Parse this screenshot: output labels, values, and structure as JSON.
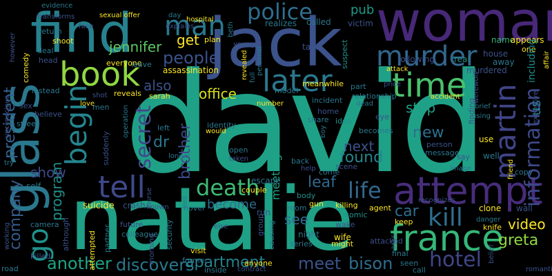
{
  "words": [
    {
      "text": "david",
      "color": "#1fa187"
    },
    {
      "text": "natalie",
      "color": "#1fa187"
    },
    {
      "text": "woman",
      "color": "#482878"
    },
    {
      "text": "jack",
      "color": "#3b528b"
    },
    {
      "text": "find",
      "color": "#26828e"
    },
    {
      "text": "glass",
      "color": "#2a788e"
    },
    {
      "text": "attempt",
      "color": "#472d7b"
    },
    {
      "text": "france",
      "color": "#35b779"
    },
    {
      "text": "book",
      "color": "#90d743"
    },
    {
      "text": "murder",
      "color": "#31688e"
    },
    {
      "text": "later",
      "color": "#2a788e"
    },
    {
      "text": "time",
      "color": "#4ac16d"
    },
    {
      "text": "martin",
      "color": "#414487"
    },
    {
      "text": "begin",
      "color": "#25858e"
    },
    {
      "text": "tell",
      "color": "#3e4989"
    },
    {
      "text": "police",
      "color": "#2e6e8e"
    },
    {
      "text": "man",
      "color": "#2a788e"
    },
    {
      "text": "kill",
      "color": "#2e6e8e"
    },
    {
      "text": "go",
      "color": "#21918c"
    },
    {
      "text": "death",
      "color": "#3dbc74"
    },
    {
      "text": "information",
      "color": "#3e4989"
    },
    {
      "text": "secret",
      "color": "#3f4889"
    },
    {
      "text": "life",
      "color": "#31688e"
    },
    {
      "text": "hotel",
      "color": "#404688"
    },
    {
      "text": "jennifer",
      "color": "#5ec962"
    },
    {
      "text": "people",
      "color": "#3b528b"
    },
    {
      "text": "greta",
      "color": "#90d743"
    },
    {
      "text": "video",
      "color": "#fde725"
    },
    {
      "text": "bison",
      "color": "#2e6e8e"
    },
    {
      "text": "discovers",
      "color": "#2a788e"
    },
    {
      "text": "apartment",
      "color": "#26828e"
    },
    {
      "text": "meet",
      "color": "#3b528b"
    },
    {
      "text": "another",
      "color": "#20a386"
    },
    {
      "text": "president",
      "color": "#355f8d"
    },
    {
      "text": "company",
      "color": "#365c8d"
    },
    {
      "text": "office",
      "color": "#d8e219"
    },
    {
      "text": "found",
      "color": "#25858e"
    },
    {
      "text": "next",
      "color": "#3b528b"
    },
    {
      "text": "program",
      "color": "#21918c"
    },
    {
      "text": "show",
      "color": "#3e4989"
    },
    {
      "text": "brother",
      "color": "#3e4989"
    },
    {
      "text": "leaf",
      "color": "#31688e"
    },
    {
      "text": "become",
      "color": "#2e6e8e"
    },
    {
      "text": "see",
      "color": "#2e6e8e"
    },
    {
      "text": "new",
      "color": "#2d708e"
    },
    {
      "text": "stop",
      "color": "#1fa187"
    },
    {
      "text": "dr",
      "color": "#2a788e"
    },
    {
      "text": "car",
      "color": "#2e6e8e"
    },
    {
      "text": "also",
      "color": "#3b528b"
    },
    {
      "text": "get",
      "color": "#fde725"
    },
    {
      "text": "pub",
      "color": "#1e9b8a"
    },
    {
      "text": "meeting",
      "color": "#20a486"
    },
    {
      "text": "us",
      "color": "#26828e"
    },
    {
      "text": "assassination",
      "color": "#fde725"
    },
    {
      "text": "crash",
      "color": "#3b528b"
    },
    {
      "text": "suicide",
      "color": "#fde725"
    },
    {
      "text": "victim",
      "color": "#3b528b"
    },
    {
      "text": "called",
      "color": "#2a788e"
    },
    {
      "text": "realizes",
      "color": "#2a788e"
    },
    {
      "text": "following",
      "color": "#3b528b"
    },
    {
      "text": "real",
      "color": "#21918c"
    },
    {
      "text": "name",
      "color": "#35b779"
    },
    {
      "text": "appears",
      "color": "#fde725"
    },
    {
      "text": "one",
      "color": "#fde725"
    },
    {
      "text": "house",
      "color": "#3b528b"
    },
    {
      "text": "including",
      "color": "#21918c"
    },
    {
      "text": "murdered",
      "color": "#3b528b"
    },
    {
      "text": "away",
      "color": "#2a788e"
    },
    {
      "text": "take",
      "color": "#3b528b"
    },
    {
      "text": "suspect",
      "color": "#21918c"
    },
    {
      "text": "relationship",
      "color": "#2a788e"
    },
    {
      "text": "part",
      "color": "#2a788e"
    },
    {
      "text": "meanwhile",
      "color": "#fde725"
    },
    {
      "text": "model",
      "color": "#2a788e"
    },
    {
      "text": "incident",
      "color": "#2a788e"
    },
    {
      "text": "home",
      "color": "#3b528b"
    },
    {
      "text": "share",
      "color": "#2a788e"
    },
    {
      "text": "idea",
      "color": "#21918c"
    },
    {
      "text": "eye",
      "color": "#3b528b"
    },
    {
      "text": "becomes",
      "color": "#2a788e"
    },
    {
      "text": "person",
      "color": "#3b528b"
    },
    {
      "text": "message",
      "color": "#2a788e"
    },
    {
      "text": "use",
      "color": "#fde725"
    },
    {
      "text": "well",
      "color": "#2a788e"
    },
    {
      "text": "say",
      "color": "#3b528b"
    },
    {
      "text": "finding",
      "color": "#3b528b"
    },
    {
      "text": "image",
      "color": "#2a788e"
    },
    {
      "text": "copy",
      "color": "#2a788e"
    },
    {
      "text": "clone",
      "color": "#fde725"
    },
    {
      "text": "wall",
      "color": "#3b528b"
    },
    {
      "text": "keep",
      "color": "#fde725"
    },
    {
      "text": "knife",
      "color": "#fde725"
    },
    {
      "text": "romantic",
      "color": "#3b528b"
    },
    {
      "text": "agent",
      "color": "#fde725"
    },
    {
      "text": "killing",
      "color": "#fde725"
    },
    {
      "text": "comic",
      "color": "#21918c"
    },
    {
      "text": "wake",
      "color": "#3b528b"
    },
    {
      "text": "final",
      "color": "#2a788e"
    },
    {
      "text": "seen",
      "color": "#2a788e"
    },
    {
      "text": "call",
      "color": "#2a788e"
    },
    {
      "text": "asks",
      "color": "#3b528b"
    },
    {
      "text": "attacked",
      "color": "#3b528b"
    },
    {
      "text": "wife",
      "color": "#fde725"
    },
    {
      "text": "night",
      "color": "#2a788e"
    },
    {
      "text": "might",
      "color": "#fde725"
    },
    {
      "text": "series",
      "color": "#2a788e"
    },
    {
      "text": "anyone",
      "color": "#fde725"
    },
    {
      "text": "visit",
      "color": "#fde725"
    },
    {
      "text": "former",
      "color": "#2a788e"
    },
    {
      "text": "inside",
      "color": "#2a788e"
    },
    {
      "text": "contract",
      "color": "#3b528b"
    },
    {
      "text": "room",
      "color": "#2a788e"
    },
    {
      "text": "gun",
      "color": "#fde725"
    },
    {
      "text": "body",
      "color": "#21918c"
    },
    {
      "text": "run",
      "color": "#3b528b"
    },
    {
      "text": "group",
      "color": "#3b528b"
    },
    {
      "text": "causing",
      "color": "#2a788e"
    },
    {
      "text": "escape",
      "color": "#2a788e"
    },
    {
      "text": "couple",
      "color": "#fde725"
    },
    {
      "text": "novel",
      "color": "#2a788e"
    },
    {
      "text": "security",
      "color": "#2a788e"
    },
    {
      "text": "morning",
      "color": "#3b528b"
    },
    {
      "text": "future",
      "color": "#3b528b"
    },
    {
      "text": "colleague",
      "color": "#2a788e"
    },
    {
      "text": "although",
      "color": "#3b528b"
    },
    {
      "text": "partner",
      "color": "#2a788e"
    },
    {
      "text": "attempted",
      "color": "#fde725"
    },
    {
      "text": "camera",
      "color": "#2a788e"
    },
    {
      "text": "killed",
      "color": "#3b528b"
    },
    {
      "text": "road",
      "color": "#2a788e"
    },
    {
      "text": "working",
      "color": "#3b528b"
    },
    {
      "text": "self",
      "color": "#2a788e"
    },
    {
      "text": "street",
      "color": "#2a788e"
    },
    {
      "text": "believe",
      "color": "#3b528b"
    },
    {
      "text": "sex",
      "color": "#3b528b"
    },
    {
      "text": "instead",
      "color": "#2a788e"
    },
    {
      "text": "head",
      "color": "#3b528b"
    },
    {
      "text": "deal",
      "color": "#2a788e"
    },
    {
      "text": "shoot",
      "color": "#fde725"
    },
    {
      "text": "return",
      "color": "#2a788e"
    },
    {
      "text": "comedy",
      "color": "#fde725"
    },
    {
      "text": "however",
      "color": "#3b528b"
    },
    {
      "text": "transforms",
      "color": "#3b528b"
    },
    {
      "text": "evidence",
      "color": "#2a788e"
    },
    {
      "text": "face",
      "color": "#3b528b"
    },
    {
      "text": "sexual offer",
      "color": "#fde725"
    },
    {
      "text": "day",
      "color": "#2a788e"
    },
    {
      "text": "explains",
      "color": "#3b528b"
    },
    {
      "text": "hospital",
      "color": "#fde725"
    },
    {
      "text": "plan",
      "color": "#fde725"
    },
    {
      "text": "beth",
      "color": "#2a788e"
    },
    {
      "text": "young",
      "color": "#3b528b"
    },
    {
      "text": "everyone",
      "color": "#fde725"
    },
    {
      "text": "leave",
      "color": "#2a788e"
    },
    {
      "text": "reveals",
      "color": "#fde725"
    },
    {
      "text": "sarah",
      "color": "#fde725"
    },
    {
      "text": "shot",
      "color": "#3b528b"
    },
    {
      "text": "love",
      "color": "#fde725"
    },
    {
      "text": "men",
      "color": "#2a788e"
    },
    {
      "text": "suddenly",
      "color": "#3b528b"
    },
    {
      "text": "operation",
      "color": "#2a788e"
    },
    {
      "text": "left",
      "color": "#2a788e"
    },
    {
      "text": "identity",
      "color": "#2a788e"
    },
    {
      "text": "would",
      "color": "#fde725"
    },
    {
      "text": "longer",
      "color": "#2a788e"
    },
    {
      "text": "nurse",
      "color": "#3b528b"
    },
    {
      "text": "open",
      "color": "#2a788e"
    },
    {
      "text": "taken",
      "color": "#3b528b"
    },
    {
      "text": "hell",
      "color": "#2a788e"
    },
    {
      "text": "revealed",
      "color": "#fde725"
    },
    {
      "text": "personal",
      "color": "#2a788e"
    },
    {
      "text": "full",
      "color": "#2a788e"
    },
    {
      "text": "number",
      "color": "#fde725"
    },
    {
      "text": "dead",
      "color": "#2a788e"
    },
    {
      "text": "boy",
      "color": "#2a788e"
    },
    {
      "text": "help",
      "color": "#3b528b"
    },
    {
      "text": "back",
      "color": "#2a788e"
    },
    {
      "text": "come",
      "color": "#2a788e"
    },
    {
      "text": "scene",
      "color": "#3b528b"
    },
    {
      "text": "attack",
      "color": "#fde725"
    },
    {
      "text": "price",
      "color": "#3b528b"
    },
    {
      "text": "accident",
      "color": "#fde725"
    },
    {
      "text": "brief",
      "color": "#2a788e"
    },
    {
      "text": "werewolf",
      "color": "#3b528b"
    },
    {
      "text": "using",
      "color": "#2a788e"
    },
    {
      "text": "friend",
      "color": "#fde725"
    },
    {
      "text": "executive",
      "color": "#3b528b"
    },
    {
      "text": "affair",
      "color": "#fde725"
    },
    {
      "text": "recognizes",
      "color": "#3b528b"
    },
    {
      "text": "danger",
      "color": "#2a788e"
    },
    {
      "text": "belief",
      "color": "#3b528b"
    },
    {
      "text": "else",
      "color": "#3b528b"
    },
    {
      "text": "known",
      "color": "#3b528b"
    },
    {
      "text": "unconscious",
      "color": "#3b528b"
    },
    {
      "text": "try",
      "color": "#2a788e"
    }
  ]
}
